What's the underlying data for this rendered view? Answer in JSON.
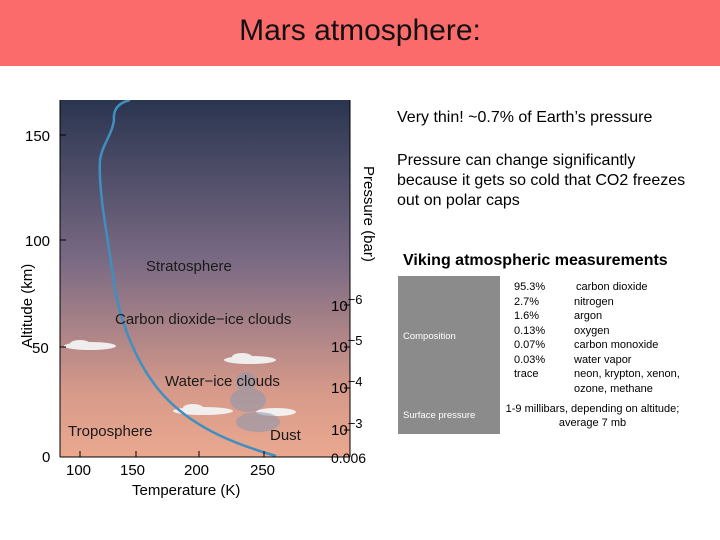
{
  "title": "Mars atmosphere:",
  "notes": [
    "Very thin!  ~0.7% of Earth’s pressure",
    "Pressure can change significantly because it gets so cold that CO2 freezes out on polar caps"
  ],
  "figure": {
    "y_axis_label": "Altitude (km)",
    "x_axis_label": "Temperature (K)",
    "right_axis_label": "Pressure (bar)",
    "altitude_ticks": [
      "150",
      "100",
      "50",
      "0"
    ],
    "temperature_ticks": [
      "100",
      "150",
      "200",
      "250"
    ],
    "pressure_ticks": [
      {
        "base": "10",
        "exp": "−6"
      },
      {
        "base": "10",
        "exp": "−5"
      },
      {
        "base": "10",
        "exp": "−4"
      },
      {
        "base": "10",
        "exp": "−3"
      }
    ],
    "pressure_bottom_tick": "0.006",
    "region_labels": {
      "stratosphere": "Stratosphere",
      "co2_clouds": "Carbon dioxide−ice clouds",
      "water_clouds": "Water−ice clouds",
      "troposphere": "Troposphere",
      "dust": "Dust"
    },
    "colors": {
      "sky_top": "#2a3550",
      "sky_mid": "#7a6a84",
      "sky_low": "#d79a8a",
      "ground": "#f0ddd6",
      "curve": "#3f8fc0"
    }
  },
  "viking": {
    "heading": "Viking atmospheric measurements",
    "composition_label": "Composition",
    "surface_pressure_label": "Surface pressure",
    "composition": [
      {
        "value": "95.3%",
        "gas": "carbon dioxide"
      },
      {
        "value": "2.7%",
        "gas": "nitrogen"
      },
      {
        "value": "1.6%",
        "gas": "argon"
      },
      {
        "value": "0.13%",
        "gas": "oxygen"
      },
      {
        "value": "0.07%",
        "gas": "carbon monoxide"
      },
      {
        "value": "0.03%",
        "gas": "water vapor"
      },
      {
        "value": "trace",
        "gas": "neon, krypton, xenon, ozone, methane"
      }
    ],
    "surface_pressure": "1-9 millibars, depending on altitude; average 7 mb"
  }
}
